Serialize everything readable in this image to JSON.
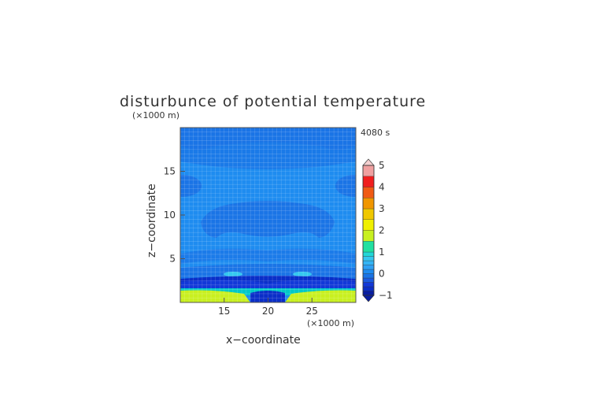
{
  "chart_data": {
    "type": "heatmap",
    "title": "disturbunce of potential temperature",
    "xlabel": "x−coordinate",
    "ylabel": "z−coordinate",
    "x_unit": "(×1000 m)",
    "y_unit": "(×1000 m)",
    "time_label": "4080 s",
    "xlim": [
      10,
      30
    ],
    "ylim": [
      0,
      20
    ],
    "x_ticks": [
      15,
      20,
      25
    ],
    "y_ticks": [
      5,
      10,
      15
    ],
    "colorbar": {
      "min": -1,
      "max": 5,
      "ticks": [
        -1,
        0,
        1,
        2,
        3,
        4,
        5
      ],
      "extend": "both"
    },
    "description_values": {
      "background": 0,
      "upper_region": -0.2,
      "central_blob": -0.4,
      "surface_layer": 1.7,
      "low_dark_band": -0.7
    }
  }
}
